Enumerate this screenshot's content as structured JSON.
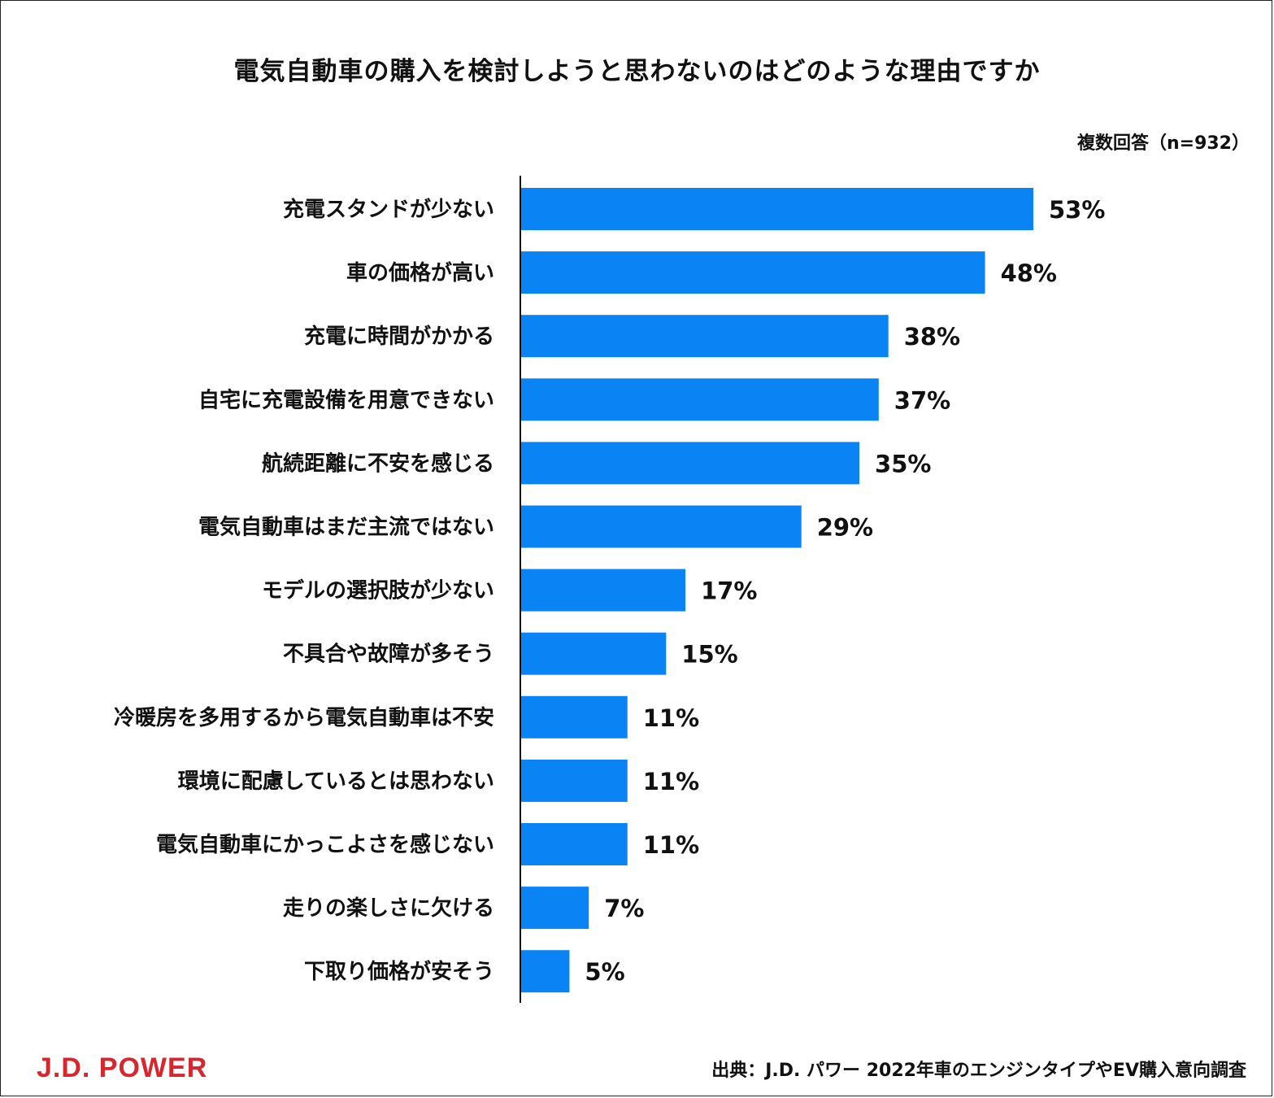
{
  "chart_data": {
    "type": "bar",
    "orientation": "horizontal",
    "title": "電気自動車の購入を検討しようと思わないのはどのような理由ですか",
    "note": "複数回答（n=932）",
    "categories": [
      "充電スタンドが少ない",
      "車の価格が高い",
      "充電に時間がかかる",
      "自宅に充電設備を用意できない",
      "航続距離に不安を感じる",
      "電気自動車はまだ主流ではない",
      "モデルの選択肢が少ない",
      "不具合や故障が多そう",
      "冷暖房を多用するから電気自動車は不安",
      "環境に配慮しているとは思わない",
      "電気自動車にかっこよさを感じない",
      "走りの楽しさに欠ける",
      "下取り価格が安そう"
    ],
    "values": [
      53,
      48,
      38,
      37,
      35,
      29,
      17,
      15,
      11,
      11,
      11,
      7,
      5
    ],
    "value_labels": [
      "53%",
      "48%",
      "38%",
      "37%",
      "35%",
      "29%",
      "17%",
      "15%",
      "11%",
      "11%",
      "11%",
      "7%",
      "5%"
    ],
    "unit": "%",
    "bar_color": "#0a84f5",
    "grid": false
  },
  "footer": {
    "logo": "J.D. POWER",
    "logo_color": "#d8262e",
    "source": "出典：J.D. パワー 2022年車のエンジンタイプやEV購入意向調査"
  }
}
